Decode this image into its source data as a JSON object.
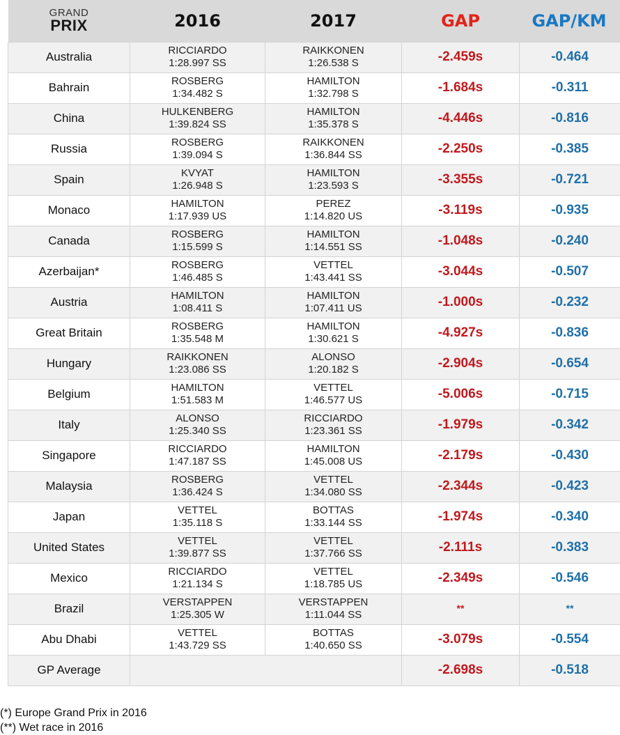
{
  "header": {
    "gp_small": "GRAND",
    "gp_big": "PRIX",
    "year_2016": "2016",
    "year_2017": "2017",
    "gap": "GAP",
    "gap_km": "GAP/KM"
  },
  "colors": {
    "gap": "#c0191d",
    "gap_header": "#e2231a",
    "gap_km": "#1f70a8",
    "gap_km_header": "#1a78c2",
    "header_bg": "#d9d9d9",
    "row_alt_bg": "#f1f1f1"
  },
  "rows": [
    {
      "gp": "Australia",
      "d2016": "RICCIARDO",
      "t2016": "1:28.997 SS",
      "d2017": "RAIKKONEN",
      "t2017": "1:26.538 S",
      "gap": "-2.459s",
      "gap_km": "-0.464"
    },
    {
      "gp": "Bahrain",
      "d2016": "ROSBERG",
      "t2016": "1:34.482 S",
      "d2017": "HAMILTON",
      "t2017": "1:32.798 S",
      "gap": "-1.684s",
      "gap_km": "-0.311"
    },
    {
      "gp": "China",
      "d2016": "HULKENBERG",
      "t2016": "1:39.824 SS",
      "d2017": "HAMILTON",
      "t2017": "1:35.378 S",
      "gap": "-4.446s",
      "gap_km": "-0.816"
    },
    {
      "gp": "Russia",
      "d2016": "ROSBERG",
      "t2016": "1:39.094 S",
      "d2017": "RAIKKONEN",
      "t2017": "1:36.844 SS",
      "gap": "-2.250s",
      "gap_km": "-0.385"
    },
    {
      "gp": "Spain",
      "d2016": "KVYAT",
      "t2016": "1:26.948 S",
      "d2017": "HAMILTON",
      "t2017": "1:23.593 S",
      "gap": "-3.355s",
      "gap_km": "-0.721"
    },
    {
      "gp": "Monaco",
      "d2016": "HAMILTON",
      "t2016": "1:17.939 US",
      "d2017": "PEREZ",
      "t2017": "1:14.820 US",
      "gap": "-3.119s",
      "gap_km": "-0.935"
    },
    {
      "gp": "Canada",
      "d2016": "ROSBERG",
      "t2016": "1:15.599 S",
      "d2017": "HAMILTON",
      "t2017": "1:14.551 SS",
      "gap": "-1.048s",
      "gap_km": "-0.240"
    },
    {
      "gp": "Azerbaijan*",
      "d2016": "ROSBERG",
      "t2016": "1:46.485 S",
      "d2017": "VETTEL",
      "t2017": "1:43.441 SS",
      "gap": "-3.044s",
      "gap_km": "-0.507"
    },
    {
      "gp": "Austria",
      "d2016": "HAMILTON",
      "t2016": "1:08.411 S",
      "d2017": "HAMILTON",
      "t2017": "1:07.411 US",
      "gap": "-1.000s",
      "gap_km": "-0.232"
    },
    {
      "gp": "Great Britain",
      "d2016": "ROSBERG",
      "t2016": "1:35.548 M",
      "d2017": "HAMILTON",
      "t2017": "1:30.621 S",
      "gap": "-4.927s",
      "gap_km": "-0.836"
    },
    {
      "gp": "Hungary",
      "d2016": "RAIKKONEN",
      "t2016": "1:23.086 SS",
      "d2017": "ALONSO",
      "t2017": "1:20.182 S",
      "gap": "-2.904s",
      "gap_km": "-0.654"
    },
    {
      "gp": "Belgium",
      "d2016": "HAMILTON",
      "t2016": "1:51.583 M",
      "d2017": "VETTEL",
      "t2017": "1:46.577 US",
      "gap": "-5.006s",
      "gap_km": "-0.715"
    },
    {
      "gp": "Italy",
      "d2016": "ALONSO",
      "t2016": "1:25.340 SS",
      "d2017": "RICCIARDO",
      "t2017": "1:23.361 SS",
      "gap": "-1.979s",
      "gap_km": "-0.342"
    },
    {
      "gp": "Singapore",
      "d2016": "RICCIARDO",
      "t2016": "1:47.187 SS",
      "d2017": "HAMILTON",
      "t2017": "1:45.008 US",
      "gap": "-2.179s",
      "gap_km": "-0.430"
    },
    {
      "gp": "Malaysia",
      "d2016": "ROSBERG",
      "t2016": "1:36.424 S",
      "d2017": "VETTEL",
      "t2017": "1:34.080 SS",
      "gap": "-2.344s",
      "gap_km": "-0.423"
    },
    {
      "gp": "Japan",
      "d2016": "VETTEL",
      "t2016": "1:35.118 S",
      "d2017": "BOTTAS",
      "t2017": "1:33.144 SS",
      "gap": "-1.974s",
      "gap_km": "-0.340"
    },
    {
      "gp": "United States",
      "d2016": "VETTEL",
      "t2016": "1:39.877 SS",
      "d2017": "VETTEL",
      "t2017": "1:37.766 SS",
      "gap": "-2.111s",
      "gap_km": "-0.383"
    },
    {
      "gp": "Mexico",
      "d2016": "RICCIARDO",
      "t2016": "1:21.134 S",
      "d2017": "VETTEL",
      "t2017": "1:18.785 US",
      "gap": "-2.349s",
      "gap_km": "-0.546"
    },
    {
      "gp": "Brazil",
      "d2016": "VERSTAPPEN",
      "t2016": "1:25.305 W",
      "d2017": "VERSTAPPEN",
      "t2017": "1:11.044 SS",
      "gap": "**",
      "gap_km": "**"
    },
    {
      "gp": "Abu Dhabi",
      "d2016": "VETTEL",
      "t2016": "1:43.729 SS",
      "d2017": "BOTTAS",
      "t2017": "1:40.650 SS",
      "gap": "-3.079s",
      "gap_km": "-0.554"
    }
  ],
  "average": {
    "label": "GP Average",
    "gap": "-2.698s",
    "gap_km": "-0.518"
  },
  "footnotes": [
    "(*) Europe Grand Prix in 2016",
    "(**) Wet race in 2016"
  ]
}
